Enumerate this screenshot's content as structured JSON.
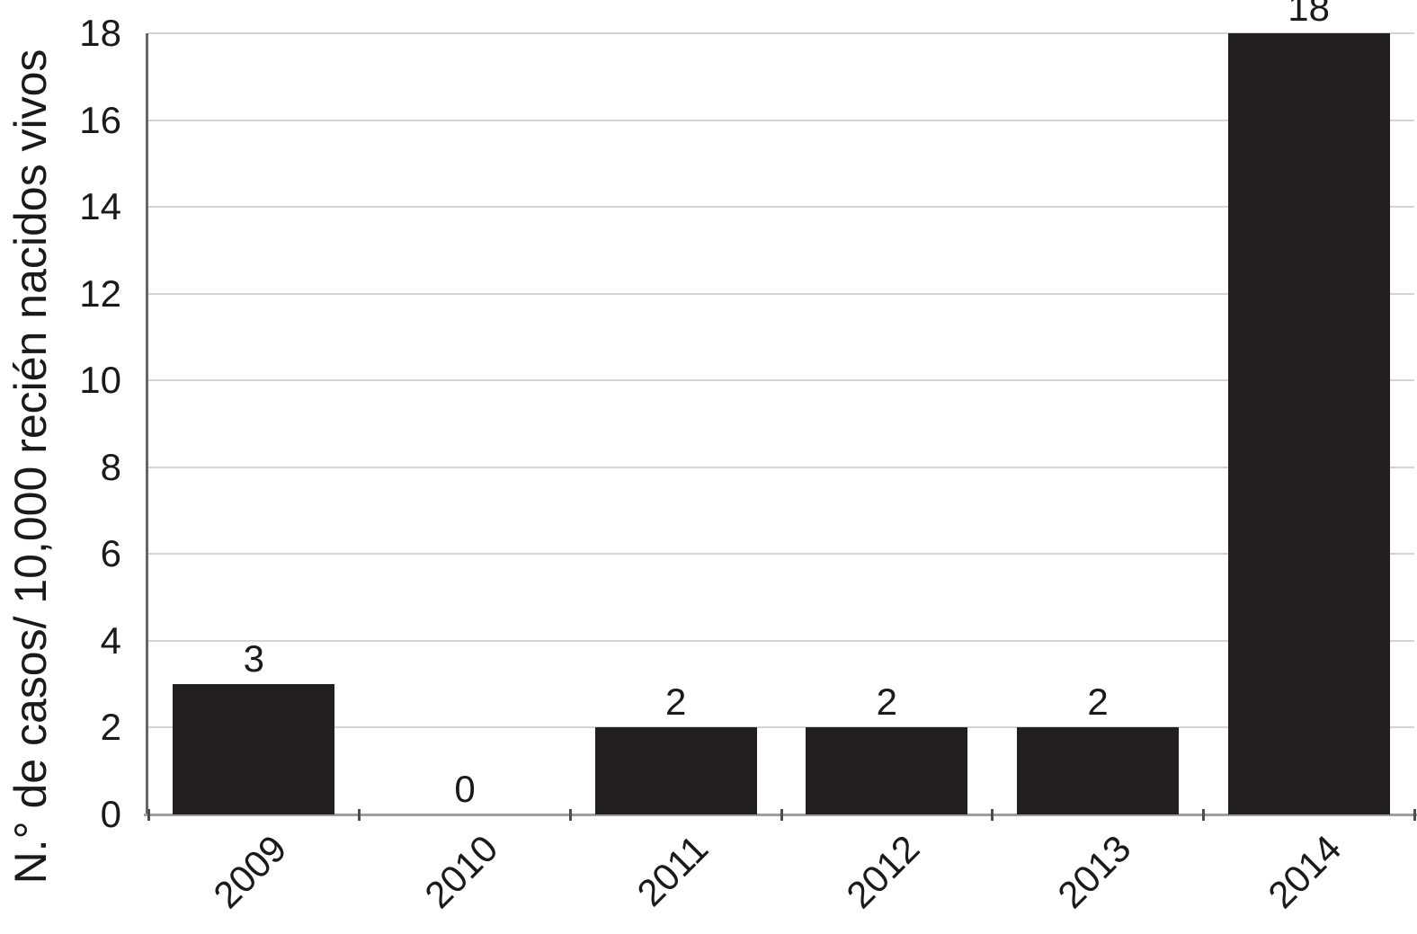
{
  "chart_data": {
    "type": "bar",
    "categories": [
      "2009",
      "2010",
      "2011",
      "2012",
      "2013",
      "2014"
    ],
    "values": [
      3,
      0,
      2,
      2,
      2,
      18
    ],
    "data_labels": [
      "3",
      "0",
      "2",
      "2",
      "2",
      "18"
    ],
    "title": "",
    "xlabel": "",
    "ylabel": "N.° de casos/ 10,000 recién nacidos vivos",
    "ylim": [
      0,
      18
    ],
    "yticks": [
      0,
      2,
      4,
      6,
      8,
      10,
      12,
      14,
      16,
      18
    ],
    "grid": true,
    "legend": false,
    "bar_color": "#231f20",
    "gridline_color": "#d4d4d4",
    "baseline_color": "#9e9e9e",
    "y_axis_line_color": "#666666",
    "tick_color": "#4d4d4d",
    "text_color": "#1a1a1a",
    "background_color": "#ffffff"
  }
}
